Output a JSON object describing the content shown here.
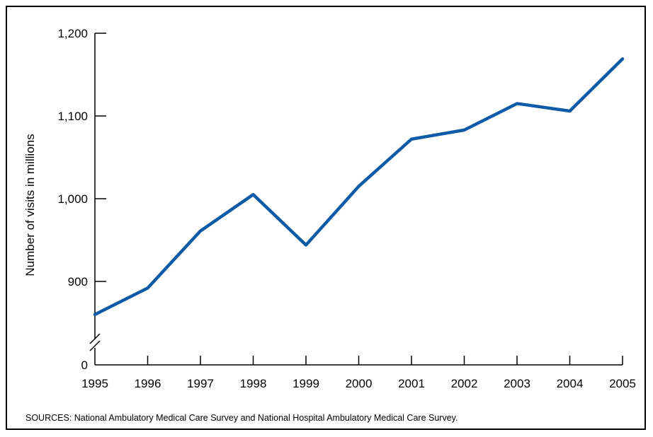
{
  "chart_data": {
    "type": "line",
    "title": "",
    "xlabel": "",
    "ylabel": "Number of visits in millions",
    "x": [
      "1995",
      "1996",
      "1997",
      "1998",
      "1999",
      "2000",
      "2001",
      "2002",
      "2003",
      "2004",
      "2005"
    ],
    "series": [
      {
        "values": [
          860,
          892,
          961,
          1005,
          944,
          1015,
          1072,
          1083,
          1115,
          1106,
          1169
        ]
      }
    ],
    "y_ticks": [
      900,
      1000,
      1100,
      1200
    ],
    "y_tick_labels": [
      "900",
      "1,000",
      "1,100",
      "1,200"
    ],
    "y_zero_label": "0",
    "ylim": [
      860,
      1200
    ],
    "y_axis_break": true,
    "grid": false,
    "line_color": "#0d5aa7"
  },
  "footnote": "SOURCES: National Ambulatory Medical Care Survey and National Hospital Ambulatory Medical Care Survey."
}
